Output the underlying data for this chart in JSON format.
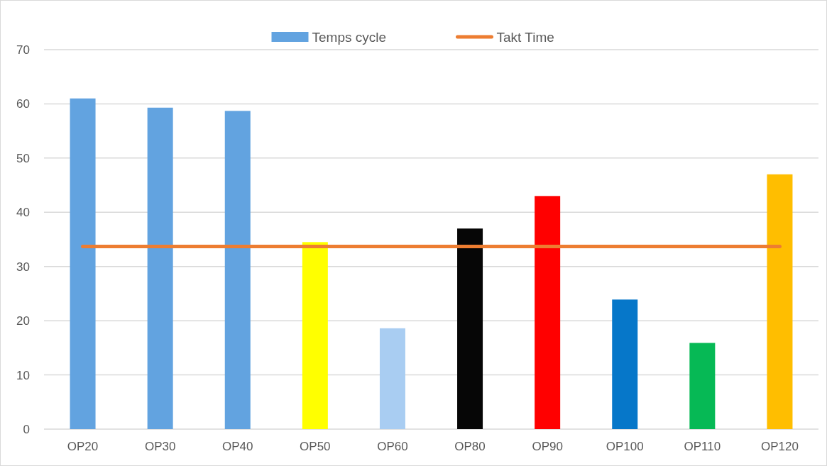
{
  "chart_data": {
    "type": "bar",
    "categories": [
      "OP20",
      "OP30",
      "OP40",
      "OP50",
      "OP60",
      "OP80",
      "OP90",
      "OP100",
      "OP110",
      "OP120"
    ],
    "series": [
      {
        "name": "Temps cycle",
        "color": "#62a3e0",
        "colors": [
          "#62a3e0",
          "#62a3e0",
          "#62a3e0",
          "#ffff00",
          "#a9cdf2",
          "#060606",
          "#ff0000",
          "#0677c9",
          "#06b955",
          "#ffbe00"
        ],
        "values": [
          61,
          59.3,
          58.7,
          34.5,
          18.6,
          37,
          43,
          23.9,
          15.9,
          47
        ]
      },
      {
        "name": "Takt Time",
        "type": "line",
        "color": "#ed7d31",
        "values": [
          33.7,
          33.7,
          33.7,
          33.7,
          33.7,
          33.7,
          33.7,
          33.7,
          33.7,
          33.7
        ]
      }
    ],
    "ylim": [
      0,
      70
    ],
    "yticks": [
      0,
      10,
      20,
      30,
      40,
      50,
      60,
      70
    ],
    "grid": "y",
    "legend": "top"
  }
}
